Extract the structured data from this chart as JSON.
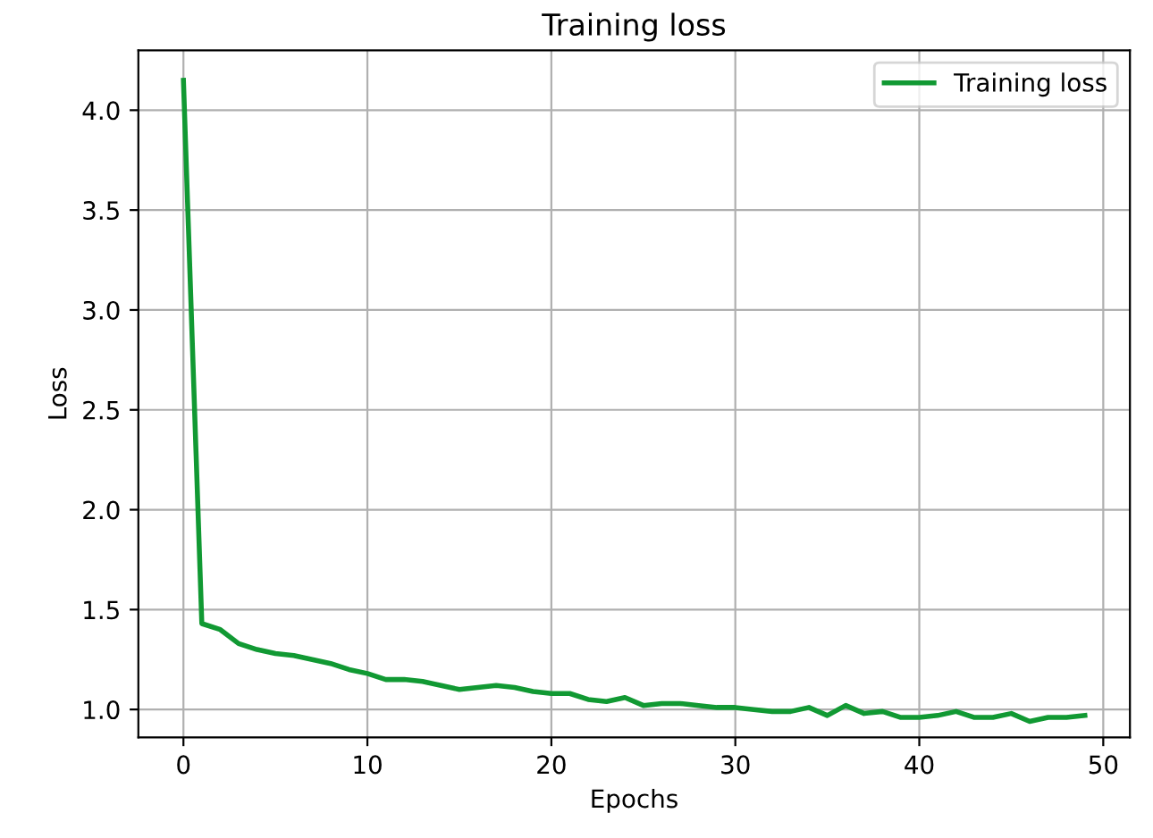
{
  "chart_data": {
    "type": "line",
    "title": "Training loss",
    "xlabel": "Epochs",
    "ylabel": "Loss",
    "x": [
      0,
      1,
      2,
      3,
      4,
      5,
      6,
      7,
      8,
      9,
      10,
      11,
      12,
      13,
      14,
      15,
      16,
      17,
      18,
      19,
      20,
      21,
      22,
      23,
      24,
      25,
      26,
      27,
      28,
      29,
      30,
      31,
      32,
      33,
      34,
      35,
      36,
      37,
      38,
      39,
      40,
      41,
      42,
      43,
      44,
      45,
      46,
      47,
      48,
      49
    ],
    "series": [
      {
        "name": "Training loss",
        "color": "#119933",
        "values": [
          4.15,
          1.43,
          1.4,
          1.33,
          1.3,
          1.28,
          1.27,
          1.25,
          1.23,
          1.2,
          1.18,
          1.15,
          1.15,
          1.14,
          1.12,
          1.1,
          1.11,
          1.12,
          1.11,
          1.09,
          1.08,
          1.08,
          1.05,
          1.04,
          1.06,
          1.02,
          1.03,
          1.03,
          1.02,
          1.01,
          1.01,
          1.0,
          0.99,
          0.99,
          1.01,
          0.97,
          1.02,
          0.98,
          0.99,
          0.96,
          0.96,
          0.97,
          0.99,
          0.96,
          0.96,
          0.98,
          0.94,
          0.96,
          0.96,
          0.97
        ]
      }
    ],
    "xlim": [
      -2.45,
      51.45
    ],
    "ylim": [
      0.86,
      4.3
    ],
    "xticks": [
      0,
      10,
      20,
      30,
      40,
      50
    ],
    "yticks": [
      {
        "value": 1.0,
        "label": "1.0"
      },
      {
        "value": 1.5,
        "label": "1.5"
      },
      {
        "value": 2.0,
        "label": "2.0"
      },
      {
        "value": 2.5,
        "label": "2.5"
      },
      {
        "value": 3.0,
        "label": "3.0"
      },
      {
        "value": 3.5,
        "label": "3.5"
      },
      {
        "value": 4.0,
        "label": "4.0"
      }
    ],
    "grid": true,
    "legend": "top right",
    "marker": "none",
    "line_style": "solid"
  }
}
